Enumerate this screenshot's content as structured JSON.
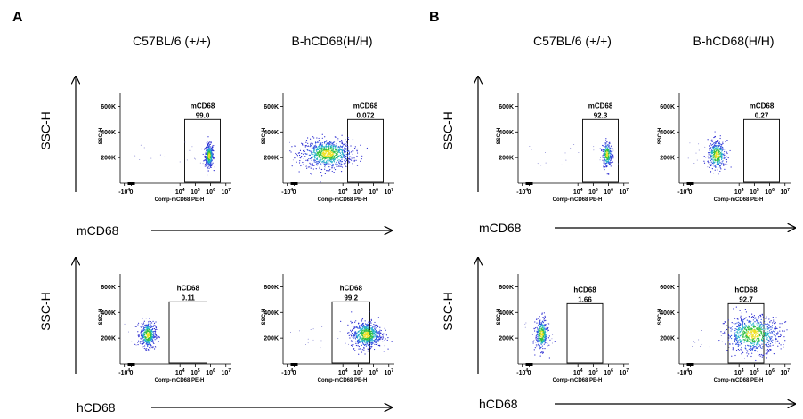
{
  "chart_data": {
    "type": "scatter",
    "panels": [
      {
        "letter": "A",
        "columns": [
          "C57BL/6 (+/+)",
          "B-hCD68(H/H)"
        ],
        "rows": [
          {
            "y_label": "SSC-H",
            "x_label": "mCD68",
            "gate": "mCD68",
            "values": [
              "99.0",
              "0.072"
            ]
          },
          {
            "y_label": "SSC-H",
            "x_label": "hCD68",
            "gate": "hCD68",
            "values": [
              "0.11",
              "99.2"
            ]
          }
        ]
      },
      {
        "letter": "B",
        "columns": [
          "C57BL/6 (+/+)",
          "B-hCD68(H/H)"
        ],
        "rows": [
          {
            "y_label": "SSC-H",
            "x_label": "mCD68",
            "gate": "mCD68",
            "values": [
              "92.3",
              "0.27"
            ]
          },
          {
            "y_label": "SSC-H",
            "x_label": "hCD68",
            "gate": "hCD68",
            "values": [
              "1.66",
              "92.7"
            ]
          }
        ]
      }
    ],
    "plot_axes": {
      "ylabel": "SSC-H",
      "yticks": [
        "600K",
        "400K",
        "200K"
      ],
      "xlabel": "Comp-mCD68 PE-H",
      "xticks": [
        {
          "b": "-10",
          "e": "4"
        },
        {
          "b": "0",
          "e": ""
        },
        {
          "b": "10",
          "e": "4"
        },
        {
          "b": "10",
          "e": "5"
        },
        {
          "b": "10",
          "e": "6"
        },
        {
          "b": "10",
          "e": "7"
        }
      ]
    },
    "populations": [
      {
        "panel": "A",
        "row": 0,
        "col": 0,
        "x": 5.6,
        "y": 215,
        "sx": 0.15,
        "sy": 45,
        "n": 420
      },
      {
        "panel": "A",
        "row": 0,
        "col": 1,
        "x": 2.4,
        "y": 230,
        "sx": 0.9,
        "sy": 55,
        "n": 850
      },
      {
        "panel": "A",
        "row": 1,
        "col": 0,
        "x": 1.2,
        "y": 225,
        "sx": 0.28,
        "sy": 50,
        "n": 420
      },
      {
        "panel": "A",
        "row": 1,
        "col": 1,
        "x": 5.2,
        "y": 225,
        "sx": 0.55,
        "sy": 50,
        "n": 700
      },
      {
        "panel": "B",
        "row": 0,
        "col": 0,
        "x": 5.6,
        "y": 225,
        "sx": 0.17,
        "sy": 50,
        "n": 260
      },
      {
        "panel": "B",
        "row": 0,
        "col": 1,
        "x": 1.9,
        "y": 220,
        "sx": 0.32,
        "sy": 55,
        "n": 380
      },
      {
        "panel": "B",
        "row": 1,
        "col": 0,
        "x": 0.9,
        "y": 230,
        "sx": 0.22,
        "sy": 60,
        "n": 340
      },
      {
        "panel": "B",
        "row": 1,
        "col": 1,
        "x": 4.5,
        "y": 230,
        "sx": 0.95,
        "sy": 70,
        "n": 800
      }
    ]
  }
}
